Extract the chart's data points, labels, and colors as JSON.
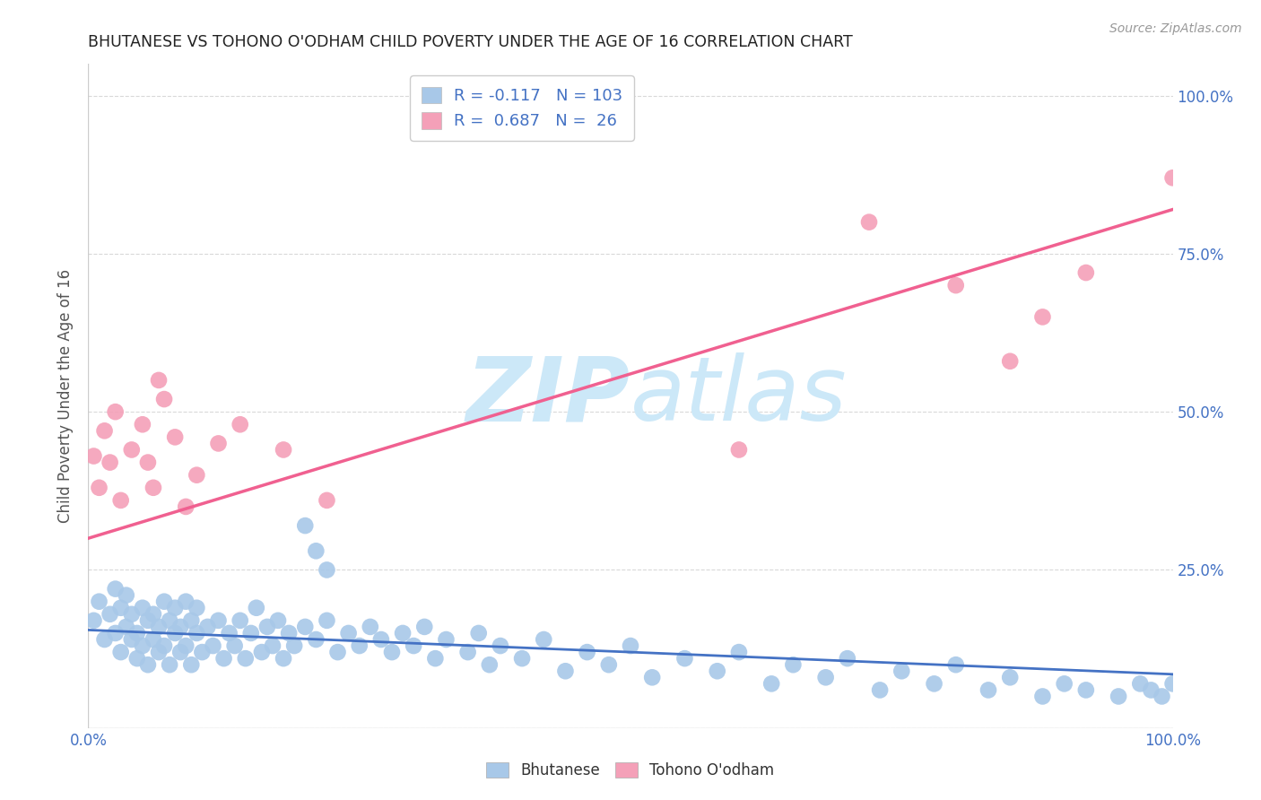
{
  "title": "BHUTANESE VS TOHONO O'ODHAM CHILD POVERTY UNDER THE AGE OF 16 CORRELATION CHART",
  "source": "Source: ZipAtlas.com",
  "ylabel": "Child Poverty Under the Age of 16",
  "xlim": [
    0.0,
    1.0
  ],
  "ylim": [
    0.0,
    1.05
  ],
  "bhutanese_color": "#a8c8e8",
  "tohono_color": "#f4a0b8",
  "trendline_blue_color": "#4472c4",
  "trendline_pink_color": "#f06090",
  "watermark_zip": "ZIP",
  "watermark_atlas": "atlas",
  "watermark_color": "#cce8f8",
  "title_color": "#222222",
  "axis_label_color": "#4472c4",
  "legend_text_color": "#4472c4",
  "background_color": "#ffffff",
  "grid_color": "#d0d0d0",
  "bhutanese_x": [
    0.005,
    0.01,
    0.015,
    0.02,
    0.025,
    0.025,
    0.03,
    0.03,
    0.035,
    0.035,
    0.04,
    0.04,
    0.045,
    0.045,
    0.05,
    0.05,
    0.055,
    0.055,
    0.06,
    0.06,
    0.065,
    0.065,
    0.07,
    0.07,
    0.075,
    0.075,
    0.08,
    0.08,
    0.085,
    0.085,
    0.09,
    0.09,
    0.095,
    0.095,
    0.1,
    0.1,
    0.105,
    0.11,
    0.115,
    0.12,
    0.125,
    0.13,
    0.135,
    0.14,
    0.145,
    0.15,
    0.155,
    0.16,
    0.165,
    0.17,
    0.175,
    0.18,
    0.185,
    0.19,
    0.2,
    0.21,
    0.22,
    0.23,
    0.24,
    0.25,
    0.26,
    0.27,
    0.28,
    0.29,
    0.3,
    0.31,
    0.32,
    0.33,
    0.35,
    0.36,
    0.37,
    0.38,
    0.4,
    0.42,
    0.44,
    0.46,
    0.48,
    0.5,
    0.52,
    0.55,
    0.58,
    0.6,
    0.63,
    0.65,
    0.68,
    0.7,
    0.73,
    0.75,
    0.78,
    0.8,
    0.83,
    0.85,
    0.88,
    0.9,
    0.92,
    0.95,
    0.97,
    0.98,
    0.99,
    1.0,
    0.2,
    0.21,
    0.22
  ],
  "bhutanese_y": [
    0.17,
    0.2,
    0.14,
    0.18,
    0.22,
    0.15,
    0.19,
    0.12,
    0.16,
    0.21,
    0.14,
    0.18,
    0.11,
    0.15,
    0.19,
    0.13,
    0.17,
    0.1,
    0.14,
    0.18,
    0.12,
    0.16,
    0.2,
    0.13,
    0.17,
    0.1,
    0.15,
    0.19,
    0.12,
    0.16,
    0.2,
    0.13,
    0.17,
    0.1,
    0.15,
    0.19,
    0.12,
    0.16,
    0.13,
    0.17,
    0.11,
    0.15,
    0.13,
    0.17,
    0.11,
    0.15,
    0.19,
    0.12,
    0.16,
    0.13,
    0.17,
    0.11,
    0.15,
    0.13,
    0.16,
    0.14,
    0.17,
    0.12,
    0.15,
    0.13,
    0.16,
    0.14,
    0.12,
    0.15,
    0.13,
    0.16,
    0.11,
    0.14,
    0.12,
    0.15,
    0.1,
    0.13,
    0.11,
    0.14,
    0.09,
    0.12,
    0.1,
    0.13,
    0.08,
    0.11,
    0.09,
    0.12,
    0.07,
    0.1,
    0.08,
    0.11,
    0.06,
    0.09,
    0.07,
    0.1,
    0.06,
    0.08,
    0.05,
    0.07,
    0.06,
    0.05,
    0.07,
    0.06,
    0.05,
    0.07,
    0.32,
    0.28,
    0.25
  ],
  "tohono_x": [
    0.005,
    0.01,
    0.015,
    0.02,
    0.025,
    0.03,
    0.04,
    0.05,
    0.055,
    0.06,
    0.065,
    0.07,
    0.08,
    0.09,
    0.1,
    0.12,
    0.14,
    0.18,
    0.22,
    0.6,
    0.72,
    0.8,
    0.85,
    0.88,
    0.92,
    1.0
  ],
  "tohono_y": [
    0.43,
    0.38,
    0.47,
    0.42,
    0.5,
    0.36,
    0.44,
    0.48,
    0.42,
    0.38,
    0.55,
    0.52,
    0.46,
    0.35,
    0.4,
    0.45,
    0.48,
    0.44,
    0.36,
    0.44,
    0.8,
    0.7,
    0.58,
    0.65,
    0.72,
    0.87
  ],
  "bhutanese_trend_x": [
    0.0,
    1.0
  ],
  "bhutanese_trend_y": [
    0.155,
    0.085
  ],
  "tohono_trend_x": [
    0.0,
    1.0
  ],
  "tohono_trend_y": [
    0.3,
    0.82
  ]
}
